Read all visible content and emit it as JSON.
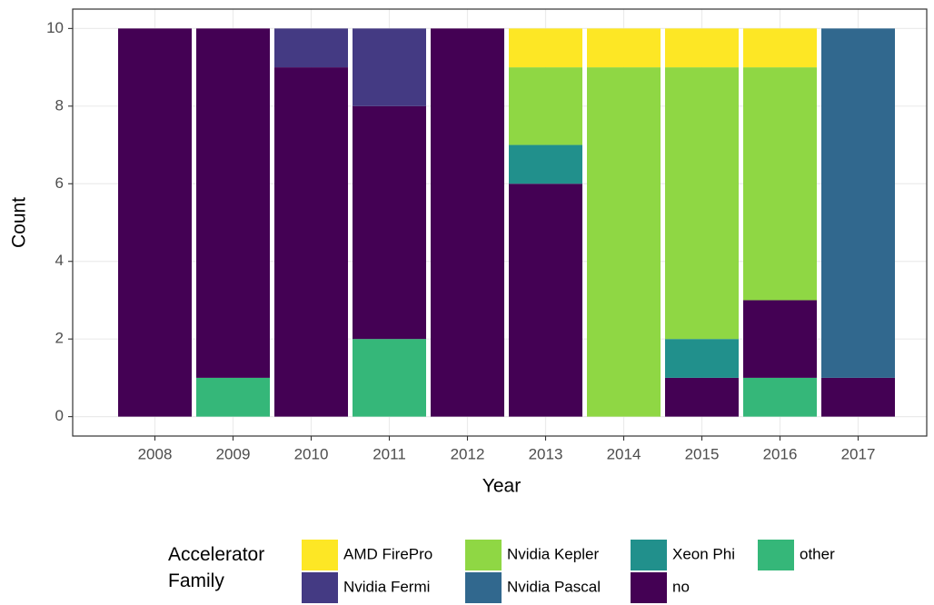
{
  "chart_data": {
    "type": "stacked_bar",
    "x_label": "Year",
    "y_label": "Count",
    "categories": [
      "2008",
      "2009",
      "2010",
      "2011",
      "2012",
      "2013",
      "2014",
      "2015",
      "2016",
      "2017"
    ],
    "legend_title": "Accelerator\nFamily",
    "series": [
      {
        "name": "AMD FirePro",
        "color": "#FDE725",
        "values": [
          0,
          0,
          0,
          0,
          0,
          1,
          1,
          1,
          1,
          0
        ]
      },
      {
        "name": "Nvidia Fermi",
        "color": "#443A83",
        "values": [
          0,
          0,
          1,
          2,
          0,
          0,
          0,
          0,
          0,
          0
        ]
      },
      {
        "name": "Nvidia Kepler",
        "color": "#8FD744",
        "values": [
          0,
          0,
          0,
          0,
          0,
          2,
          9,
          7,
          6,
          0
        ]
      },
      {
        "name": "Nvidia Pascal",
        "color": "#31688E",
        "values": [
          0,
          0,
          0,
          0,
          0,
          0,
          0,
          0,
          0,
          9
        ]
      },
      {
        "name": "Xeon Phi",
        "color": "#21908C",
        "values": [
          0,
          0,
          0,
          0,
          0,
          1,
          0,
          1,
          0,
          0
        ]
      },
      {
        "name": "no",
        "color": "#440154",
        "values": [
          10,
          9,
          9,
          6,
          10,
          6,
          0,
          1,
          2,
          1
        ]
      },
      {
        "name": "other",
        "color": "#35B779",
        "values": [
          0,
          1,
          0,
          2,
          0,
          0,
          0,
          0,
          1,
          0
        ]
      }
    ],
    "ylim": [
      -0.5,
      10.5
    ],
    "yticks": [
      0,
      2,
      4,
      6,
      8,
      10
    ],
    "grid": true,
    "legend_position": "bottom"
  }
}
